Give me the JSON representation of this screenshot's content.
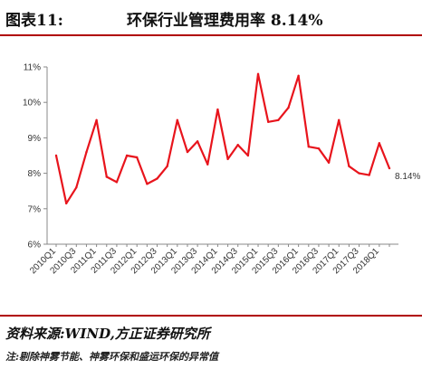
{
  "header": {
    "figure_label": "图表11:",
    "title": "环保行业管理费用率 8.14%"
  },
  "footer": {
    "source": "资料来源:WIND,方正证券研究所",
    "note": "注:剔除神雾节能、神雾环保和盛运环保的异常值"
  },
  "chart_data": {
    "type": "line",
    "x_tick_labels": [
      "2010Q1",
      "2010Q3",
      "2011Q1",
      "2011Q3",
      "2012Q1",
      "2012Q3",
      "2013Q1",
      "2013Q3",
      "2014Q1",
      "2014Q3",
      "2015Q1",
      "2015Q3",
      "2016Q1",
      "2016Q3",
      "2017Q1",
      "2017Q3",
      "2018Q1"
    ],
    "x": [
      "2010Q1",
      "2010Q2",
      "2010Q3",
      "2010Q4",
      "2011Q1",
      "2011Q2",
      "2011Q3",
      "2011Q4",
      "2012Q1",
      "2012Q2",
      "2012Q3",
      "2012Q4",
      "2013Q1",
      "2013Q2",
      "2013Q3",
      "2013Q4",
      "2014Q1",
      "2014Q2",
      "2014Q3",
      "2014Q4",
      "2015Q1",
      "2015Q2",
      "2015Q3",
      "2015Q4",
      "2016Q1",
      "2016Q2",
      "2016Q3",
      "2016Q4",
      "2017Q1",
      "2017Q2",
      "2017Q3",
      "2017Q4",
      "2018Q1",
      "2018Q2"
    ],
    "series": [
      {
        "color": "#e8141c",
        "values": [
          8.5,
          7.15,
          7.6,
          8.6,
          9.5,
          7.9,
          7.75,
          8.5,
          8.45,
          7.7,
          7.85,
          8.2,
          9.5,
          8.6,
          8.9,
          8.25,
          9.8,
          8.4,
          8.8,
          8.5,
          10.8,
          9.45,
          9.5,
          9.85,
          10.75,
          8.75,
          8.7,
          8.3,
          9.5,
          8.2,
          8.0,
          7.95,
          8.85,
          8.14
        ]
      }
    ],
    "end_label": "8.14%",
    "y_ticks": [
      "6%",
      "7%",
      "8%",
      "9%",
      "10%",
      "11%"
    ],
    "ylim": [
      6,
      11
    ],
    "grid": false
  }
}
